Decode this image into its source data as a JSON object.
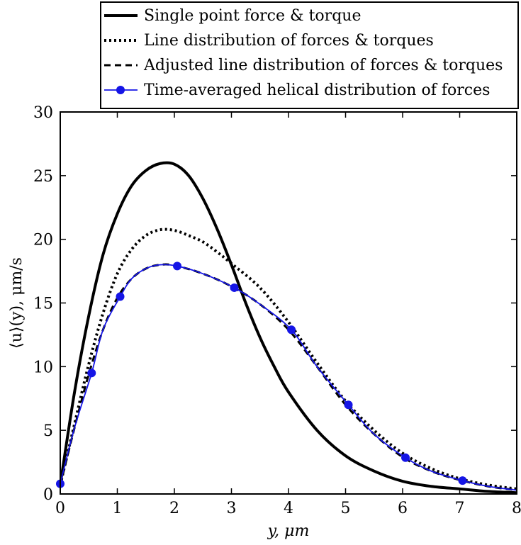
{
  "chart_data": {
    "type": "line",
    "xlabel": "y, μm",
    "ylabel": "⟨u⟩(y), μm/s",
    "xlim": [
      0,
      8
    ],
    "ylim": [
      0,
      30
    ],
    "xticks": [
      "0",
      "1",
      "2",
      "3",
      "4",
      "5",
      "6",
      "7",
      "8"
    ],
    "yticks": [
      "0",
      "5",
      "10",
      "15",
      "20",
      "25",
      "30"
    ],
    "grid": false,
    "legend_position": "top",
    "series": [
      {
        "name": "Single point force & torque",
        "style": "solid",
        "color": "#000000",
        "x": [
          0.0,
          0.25,
          0.5,
          0.75,
          1.0,
          1.25,
          1.5,
          1.75,
          2.0,
          2.25,
          2.5,
          2.75,
          3.0,
          3.25,
          3.5,
          3.75,
          4.0,
          4.5,
          5.0,
          5.5,
          6.0,
          6.5,
          7.0,
          7.5,
          8.0
        ],
        "y": [
          0.7,
          8.0,
          14.0,
          18.8,
          22.0,
          24.2,
          25.4,
          25.95,
          25.9,
          25.0,
          23.2,
          20.8,
          18.0,
          15.0,
          12.3,
          10.0,
          8.0,
          5.0,
          3.0,
          1.8,
          1.0,
          0.6,
          0.4,
          0.2,
          0.1
        ]
      },
      {
        "name": "Line distribution of forces & torques",
        "style": "dotted",
        "color": "#000000",
        "x": [
          0.0,
          0.25,
          0.5,
          0.75,
          1.0,
          1.25,
          1.5,
          1.75,
          2.0,
          2.25,
          2.5,
          2.75,
          3.0,
          3.5,
          4.0,
          4.5,
          5.0,
          5.5,
          6.0,
          6.5,
          7.0,
          7.5,
          8.0
        ],
        "y": [
          0.7,
          5.5,
          10.2,
          14.2,
          17.3,
          19.2,
          20.3,
          20.75,
          20.7,
          20.3,
          19.8,
          19.0,
          18.1,
          16.2,
          13.5,
          10.3,
          7.3,
          5.0,
          3.2,
          2.0,
          1.2,
          0.7,
          0.4
        ]
      },
      {
        "name": "Adjusted line distribution of forces & torques",
        "style": "dashed",
        "color": "#000000",
        "x": [
          0.0,
          0.25,
          0.5,
          0.75,
          1.0,
          1.25,
          1.5,
          1.75,
          2.0,
          2.5,
          3.0,
          3.5,
          4.0,
          4.5,
          5.0,
          5.5,
          6.0,
          6.5,
          7.0,
          7.5,
          8.0
        ],
        "y": [
          0.7,
          5.2,
          9.4,
          12.9,
          15.4,
          16.9,
          17.7,
          18.0,
          17.95,
          17.3,
          16.3,
          14.9,
          12.9,
          10.0,
          7.0,
          4.7,
          2.9,
          1.8,
          1.1,
          0.6,
          0.3
        ]
      },
      {
        "name": "Time-averaged helical distribution of forces",
        "style": "solid-markers",
        "color": "#1515e6",
        "x": [
          0.0,
          0.25,
          0.55,
          0.75,
          1.05,
          1.25,
          1.5,
          1.75,
          2.05,
          2.5,
          3.05,
          3.5,
          4.05,
          4.5,
          5.05,
          5.5,
          6.05,
          6.5,
          7.05,
          7.5,
          8.0
        ],
        "y": [
          0.8,
          5.2,
          9.5,
          12.9,
          15.5,
          16.9,
          17.7,
          18.0,
          17.9,
          17.3,
          16.2,
          14.9,
          12.9,
          10.0,
          7.0,
          4.7,
          2.85,
          1.8,
          1.05,
          0.6,
          0.3
        ],
        "markers_x": [
          0.0,
          0.55,
          1.05,
          2.05,
          3.05,
          4.05,
          5.05,
          6.05,
          7.05
        ],
        "markers_y": [
          0.8,
          9.5,
          15.5,
          17.9,
          16.2,
          12.9,
          7.0,
          2.85,
          1.05
        ]
      }
    ]
  }
}
